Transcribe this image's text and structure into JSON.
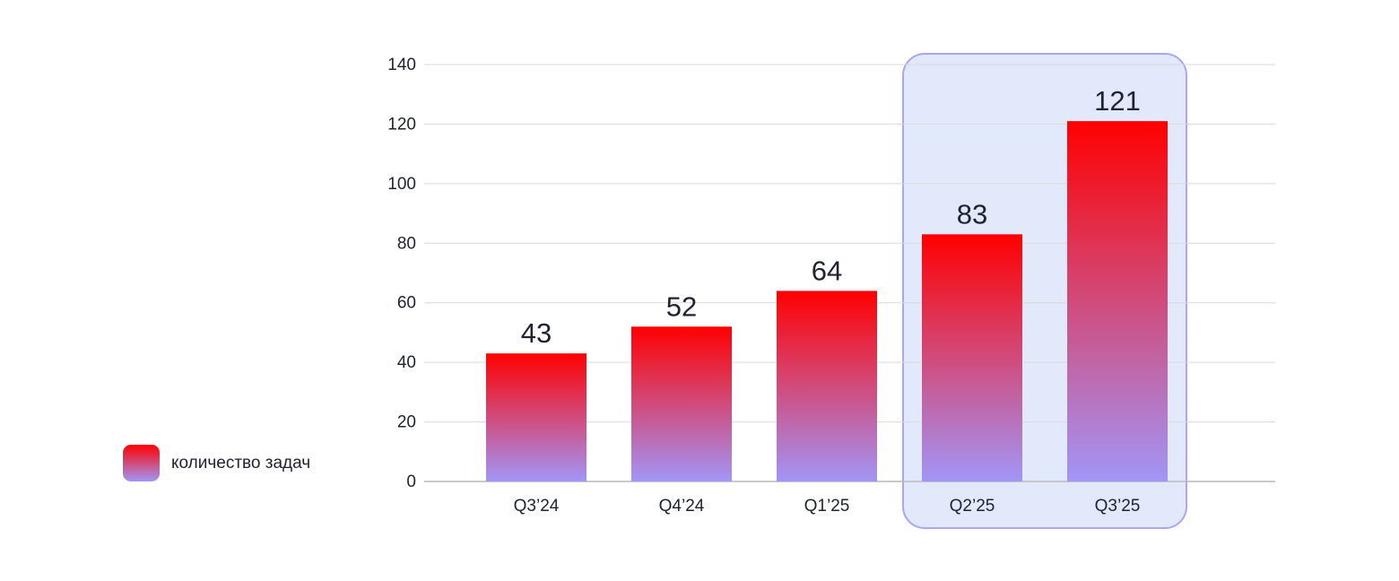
{
  "chart_data": {
    "type": "bar",
    "categories": [
      "Q3’24",
      "Q4’24",
      "Q1’25",
      "Q2’25",
      "Q3’25"
    ],
    "series": [
      {
        "name": "количество задач",
        "values": [
          43,
          52,
          64,
          83,
          121
        ]
      }
    ],
    "value_labels": [
      "43",
      "52",
      "64",
      "83",
      "121"
    ],
    "y_ticks": [
      "0",
      "20",
      "40",
      "60",
      "80",
      "100",
      "120",
      "140"
    ],
    "ylim": [
      0,
      140
    ],
    "grid": true,
    "legend_position": "left",
    "highlighted_categories": [
      "Q2’25",
      "Q3’25"
    ],
    "colors": {
      "bar_top": "#ff0000",
      "bar_bottom": "#a296f7",
      "highlight_fill": "#e2e9fb",
      "highlight_stroke": "#a9a7f5",
      "grid": "#d9d9d9",
      "axis": "#b9b9b9",
      "text": "#1f2230"
    }
  },
  "legend": {
    "label": "количество задач"
  }
}
